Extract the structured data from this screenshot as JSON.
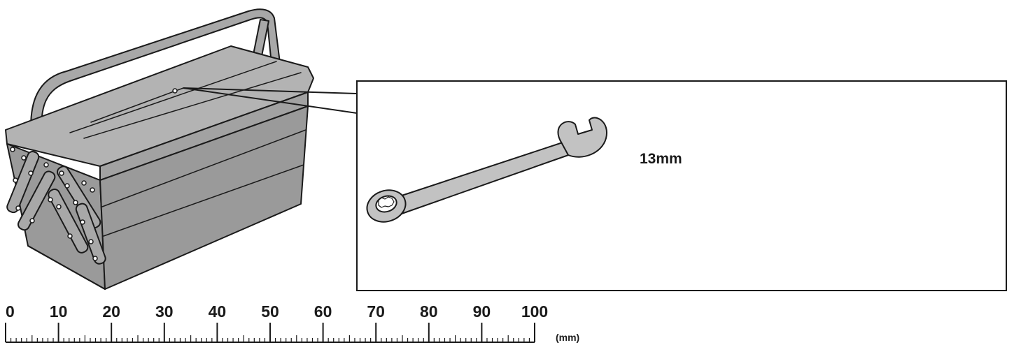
{
  "callout": {
    "wrench_size_label": "13mm"
  },
  "ruler": {
    "unit_label": "(mm)",
    "min": 0,
    "max": 100,
    "major_step": 10,
    "minor_step": 1,
    "tick_labels": [
      "0",
      "10",
      "20",
      "30",
      "40",
      "50",
      "60",
      "70",
      "80",
      "90",
      "100"
    ]
  },
  "icons": {
    "toolbox": "cantilever-toolbox-icon",
    "wrench": "combination-wrench-icon"
  },
  "colors": {
    "toolbox_fill": "#9a9a9a",
    "toolbox_fill_light": "#b3b3b3",
    "wrench_fill": "#c2c2c2",
    "outline": "#1a1a1a"
  }
}
